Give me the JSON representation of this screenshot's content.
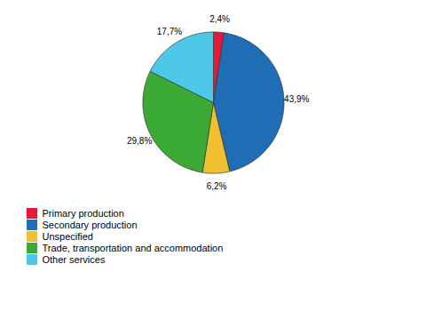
{
  "chart_data": {
    "type": "pie",
    "categories": [
      "Primary production",
      "Secondary production",
      "Unspecified",
      "Trade, transportation and accommodation",
      "Other services"
    ],
    "values": [
      2.4,
      43.9,
      6.2,
      29.8,
      17.7
    ],
    "value_labels": [
      "2,4%",
      "43,9%",
      "6,2%",
      "29,8%",
      "17,7%"
    ],
    "colors": [
      "#e8173a",
      "#1f6db5",
      "#f0c030",
      "#3aaa35",
      "#4dc8e8"
    ],
    "data_labels": true,
    "legend": "lower left"
  }
}
